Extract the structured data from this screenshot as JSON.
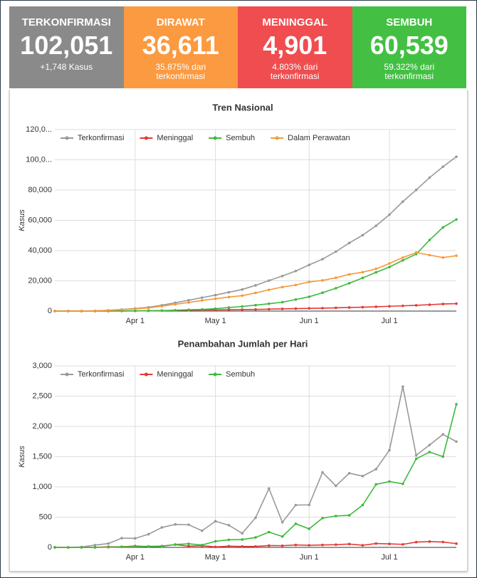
{
  "cards": [
    {
      "title": "TERKONFIRMASI",
      "value": "102,051",
      "note": [
        "+1,748 Kasus"
      ],
      "color": "#8a8a8a"
    },
    {
      "title": "DIRAWAT",
      "value": "36,611",
      "note": [
        "35.875% dari",
        "terkonfirmasi"
      ],
      "color": "#fb9a40"
    },
    {
      "title": "MENINGGAL",
      "value": "4,901",
      "note": [
        "4.803% dari",
        "terkonfirmasi"
      ],
      "color": "#ef4d4f"
    },
    {
      "title": "SEMBUH",
      "value": "60,539",
      "note": [
        "59.322% dari",
        "terkonfirmasi"
      ],
      "color": "#43c043"
    }
  ],
  "chart_data": [
    {
      "type": "line",
      "title": "Tren Nasional",
      "y_label": "Kasus",
      "categories": [
        null,
        null,
        null,
        null,
        null,
        null,
        "Apr 1",
        null,
        null,
        null,
        null,
        null,
        "May 1",
        null,
        null,
        null,
        null,
        null,
        null,
        "Jun 1",
        null,
        null,
        null,
        null,
        null,
        "Jul 1",
        null,
        null,
        null,
        null,
        null
      ],
      "ylim": [
        0,
        120000
      ],
      "yticks": [
        0,
        {
          "value": 20000,
          "label": "20,000"
        },
        {
          "value": 40000,
          "label": "40,000"
        },
        {
          "value": 60000,
          "label": "60,000"
        },
        {
          "value": 80000,
          "label": "80,000"
        },
        {
          "value": 100000,
          "label": "100,0..."
        },
        {
          "value": 120000,
          "label": "120,0..."
        }
      ],
      "grid": true,
      "series": [
        {
          "name": "Terkonfirmasi",
          "color": "#999999",
          "values": [
            2,
            4,
            34,
            172,
            514,
            1046,
            1677,
            2491,
            3842,
            5516,
            7135,
            8882,
            10551,
            12438,
            14265,
            17025,
            20162,
            23165,
            26473,
            30514,
            34316,
            39294,
            45029,
            50187,
            56385,
            63749,
            72347,
            80094,
            88214,
            95418,
            102051
          ]
        },
        {
          "name": "Meninggal",
          "color": "#e53935",
          "values": [
            0,
            0,
            1,
            5,
            48,
            87,
            157,
            221,
            327,
            469,
            616,
            743,
            800,
            872,
            991,
            1089,
            1278,
            1418,
            1613,
            1801,
            1923,
            2134,
            2373,
            2573,
            2876,
            3171,
            3469,
            3797,
            4239,
            4665,
            4901
          ]
        },
        {
          "name": "Sembuh",
          "color": "#3cba3c",
          "values": [
            0,
            0,
            2,
            8,
            29,
            46,
            103,
            192,
            286,
            548,
            842,
            1107,
            1591,
            2317,
            3063,
            3911,
            4838,
            5877,
            7637,
            9443,
            12129,
            15123,
            18404,
            21909,
            25595,
            29105,
            33529,
            37636,
            46977,
            55354,
            60539
          ]
        },
        {
          "name": "Dalam Perawatan",
          "color": "#f7983a",
          "values": [
            2,
            4,
            31,
            159,
            437,
            913,
            1417,
            2078,
            3229,
            4499,
            5677,
            7032,
            8160,
            9249,
            10211,
            12025,
            14046,
            15870,
            17223,
            19270,
            20264,
            22037,
            24252,
            25705,
            27914,
            31473,
            35349,
            38661,
            36998,
            35399,
            36611
          ]
        }
      ]
    },
    {
      "type": "line",
      "title": "Penambahan Jumlah per Hari",
      "y_label": "Kasus",
      "categories": [
        null,
        null,
        null,
        null,
        null,
        null,
        "Apr 1",
        null,
        null,
        null,
        null,
        null,
        "May 1",
        null,
        null,
        null,
        null,
        null,
        null,
        "Jun 1",
        null,
        null,
        null,
        null,
        null,
        "Jul 1",
        null,
        null,
        null,
        null,
        null
      ],
      "ylim": [
        0,
        3000
      ],
      "yticks": [
        0,
        500,
        {
          "value": 1000,
          "label": "1,000"
        },
        {
          "value": 1500,
          "label": "1,500"
        },
        {
          "value": 2000,
          "label": "2,000"
        },
        {
          "value": 2500,
          "label": "2,500"
        },
        {
          "value": 3000,
          "label": "3,000"
        }
      ],
      "grid": true,
      "series": [
        {
          "name": "Terkonfirmasi",
          "color": "#999999",
          "values": [
            2,
            0,
            7,
            38,
            64,
            153,
            149,
            218,
            330,
            380,
            375,
            275,
            433,
            367,
            233,
            490,
            973,
            415,
            700,
            703,
            1241,
            1017,
            1226,
            1178,
            1293,
            1607,
            2657,
            1522,
            1693,
            1868,
            1748
          ]
        },
        {
          "name": "Meninggal",
          "color": "#e53935",
          "values": [
            0,
            0,
            0,
            1,
            10,
            11,
            21,
            14,
            21,
            46,
            20,
            27,
            8,
            20,
            16,
            15,
            30,
            28,
            40,
            35,
            40,
            45,
            55,
            35,
            64,
            58,
            50,
            87,
            96,
            89,
            62
          ]
        },
        {
          "name": "Sembuh",
          "color": "#3cba3c",
          "values": [
            0,
            0,
            0,
            0,
            3,
            9,
            9,
            17,
            16,
            48,
            59,
            39,
            101,
            126,
            130,
            164,
            253,
            180,
            390,
            307,
            484,
            519,
            530,
            700,
            1042,
            1089,
            1050,
            1464,
            1576,
            1500,
            2366
          ]
        }
      ]
    }
  ]
}
